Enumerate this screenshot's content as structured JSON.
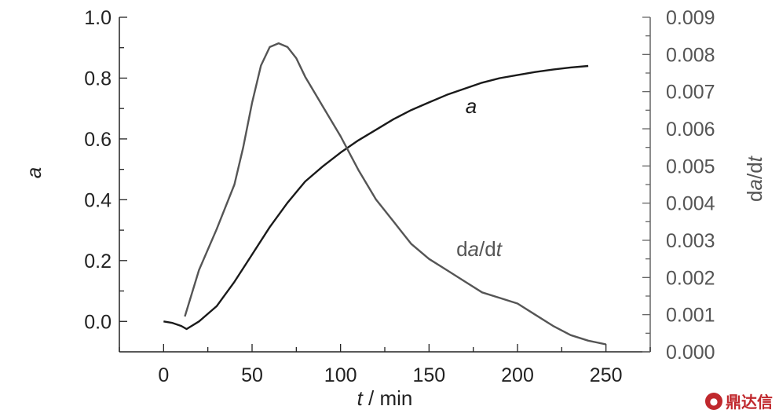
{
  "chart_data": {
    "type": "line",
    "x_axis": {
      "label_main": "t",
      "label_rest": " / min",
      "lim": [
        -25,
        275
      ],
      "ticks": [
        0,
        50,
        100,
        150,
        200,
        250
      ]
    },
    "y_left": {
      "label": "a",
      "lim": [
        -0.1,
        1.0
      ],
      "ticks": [
        0.0,
        0.2,
        0.4,
        0.6,
        0.8,
        1.0
      ],
      "tick_labels": [
        "0.0",
        "0.2",
        "0.4",
        "0.6",
        "0.8",
        "1.0"
      ]
    },
    "y_right": {
      "label_parts": [
        "d",
        "a",
        "/d",
        "t"
      ],
      "lim": [
        0.0,
        0.009
      ],
      "ticks": [
        0.0,
        0.001,
        0.002,
        0.003,
        0.004,
        0.005,
        0.006,
        0.007,
        0.008,
        0.009
      ],
      "tick_labels": [
        "0.000",
        "0.001",
        "0.002",
        "0.003",
        "0.004",
        "0.005",
        "0.006",
        "0.007",
        "0.008",
        "0.009"
      ]
    },
    "series": [
      {
        "label": "a",
        "axis": "left",
        "color": "#1a1a1a",
        "x": [
          0,
          5,
          10,
          13,
          20,
          30,
          40,
          50,
          60,
          70,
          80,
          90,
          100,
          110,
          120,
          130,
          140,
          150,
          160,
          170,
          180,
          190,
          200,
          210,
          220,
          230,
          240
        ],
        "y": [
          0.0,
          -0.005,
          -0.015,
          -0.025,
          0.0,
          0.05,
          0.13,
          0.22,
          0.31,
          0.39,
          0.46,
          0.51,
          0.555,
          0.595,
          0.63,
          0.665,
          0.695,
          0.72,
          0.745,
          0.765,
          0.785,
          0.8,
          0.81,
          0.82,
          0.828,
          0.835,
          0.84
        ]
      },
      {
        "label_parts": [
          "d",
          "a",
          "/d",
          "t"
        ],
        "axis": "right",
        "color": "#555555",
        "x": [
          12,
          20,
          30,
          40,
          45,
          50,
          55,
          60,
          65,
          70,
          75,
          80,
          90,
          100,
          110,
          120,
          130,
          140,
          150,
          160,
          170,
          180,
          190,
          200,
          210,
          220,
          230,
          240,
          250
        ],
        "y": [
          0.00095,
          0.0022,
          0.0033,
          0.0045,
          0.0055,
          0.0067,
          0.0077,
          0.0082,
          0.0083,
          0.0082,
          0.0079,
          0.0074,
          0.0066,
          0.0058,
          0.0049,
          0.0041,
          0.0035,
          0.0029,
          0.0025,
          0.0022,
          0.0019,
          0.0016,
          0.00145,
          0.0013,
          0.001,
          0.0007,
          0.00045,
          0.0003,
          0.0002
        ]
      }
    ]
  },
  "watermark": {
    "text": "鼎达信",
    "icon": "dingdaxin-logo-icon"
  }
}
